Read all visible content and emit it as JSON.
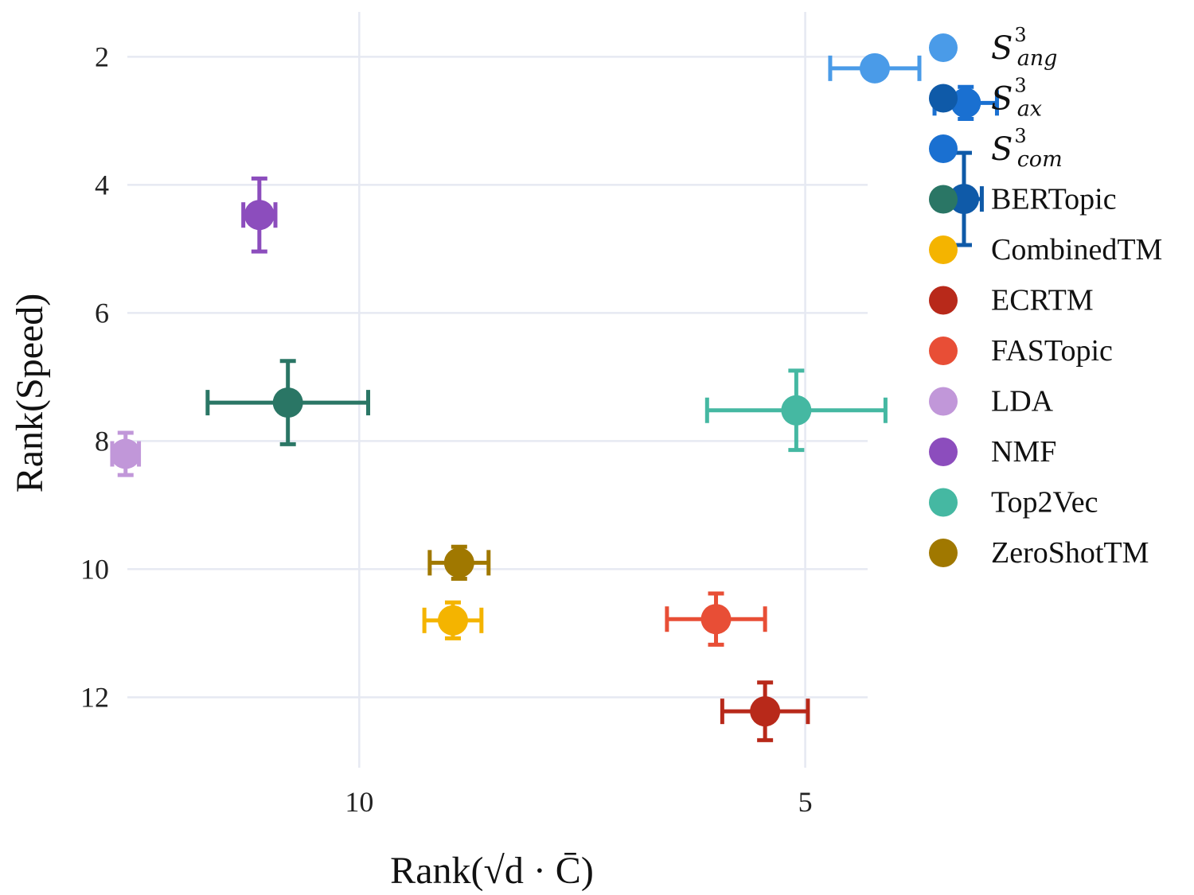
{
  "chart_data": {
    "type": "scatter",
    "xlabel": "Rank(√d · C̄)",
    "ylabel": "Rank(Speed)",
    "x_axis": {
      "range": [
        12.6,
        4.3
      ],
      "reversed": true,
      "ticks": [
        10,
        5
      ]
    },
    "y_axis": {
      "range": [
        1.3,
        13.1
      ],
      "reversed": true,
      "ticks": [
        2,
        4,
        6,
        8,
        10,
        12
      ]
    },
    "grid": true,
    "legend_placement": "right",
    "series": [
      {
        "label": "S",
        "sup": "3",
        "sub": "ang",
        "color": "#4a9be8",
        "marker": "circle",
        "x": 4.22,
        "x_err": 0.5,
        "y": 2.18,
        "y_err": 0.0
      },
      {
        "label": "S",
        "sup": "3",
        "sub": "ax",
        "color": "#0f5aa8",
        "marker": "circle",
        "x": 3.22,
        "x_err": 0.2,
        "y": 4.22,
        "y_err": 0.72
      },
      {
        "label": "S",
        "sup": "3",
        "sub": "com",
        "color": "#1a70d1",
        "marker": "circle",
        "x": 3.2,
        "x_err": 0.35,
        "y": 2.72,
        "y_err": 0.25
      },
      {
        "label": "BERTopic",
        "color": "#2a7665",
        "marker": "circle",
        "x": 10.8,
        "x_err": 0.9,
        "y": 7.4,
        "y_err": 0.65
      },
      {
        "label": "CombinedTM",
        "color": "#f4b400",
        "marker": "circle",
        "x": 8.95,
        "x_err": 0.32,
        "y": 10.8,
        "y_err": 0.28
      },
      {
        "label": "ECRTM",
        "color": "#b8291a",
        "marker": "circle",
        "x": 5.45,
        "x_err": 0.48,
        "y": 12.22,
        "y_err": 0.45
      },
      {
        "label": "FASTopic",
        "color": "#e84e36",
        "marker": "circle",
        "x": 6.0,
        "x_err": 0.55,
        "y": 10.78,
        "y_err": 0.4
      },
      {
        "label": "LDA",
        "color": "#c197d9",
        "marker": "circle",
        "x": 12.62,
        "x_err": 0.15,
        "y": 8.2,
        "y_err": 0.33
      },
      {
        "label": "NMF",
        "color": "#8c4dbd",
        "marker": "circle",
        "x": 11.12,
        "x_err": 0.18,
        "y": 4.47,
        "y_err": 0.57
      },
      {
        "label": "Top2Vec",
        "color": "#45b8a2",
        "marker": "circle",
        "x": 5.1,
        "x_err": 1.0,
        "y": 7.52,
        "y_err": 0.62
      },
      {
        "label": "ZeroShotTM",
        "color": "#a07800",
        "marker": "circle",
        "x": 8.88,
        "x_err": 0.33,
        "y": 9.9,
        "y_err": 0.25
      }
    ]
  }
}
